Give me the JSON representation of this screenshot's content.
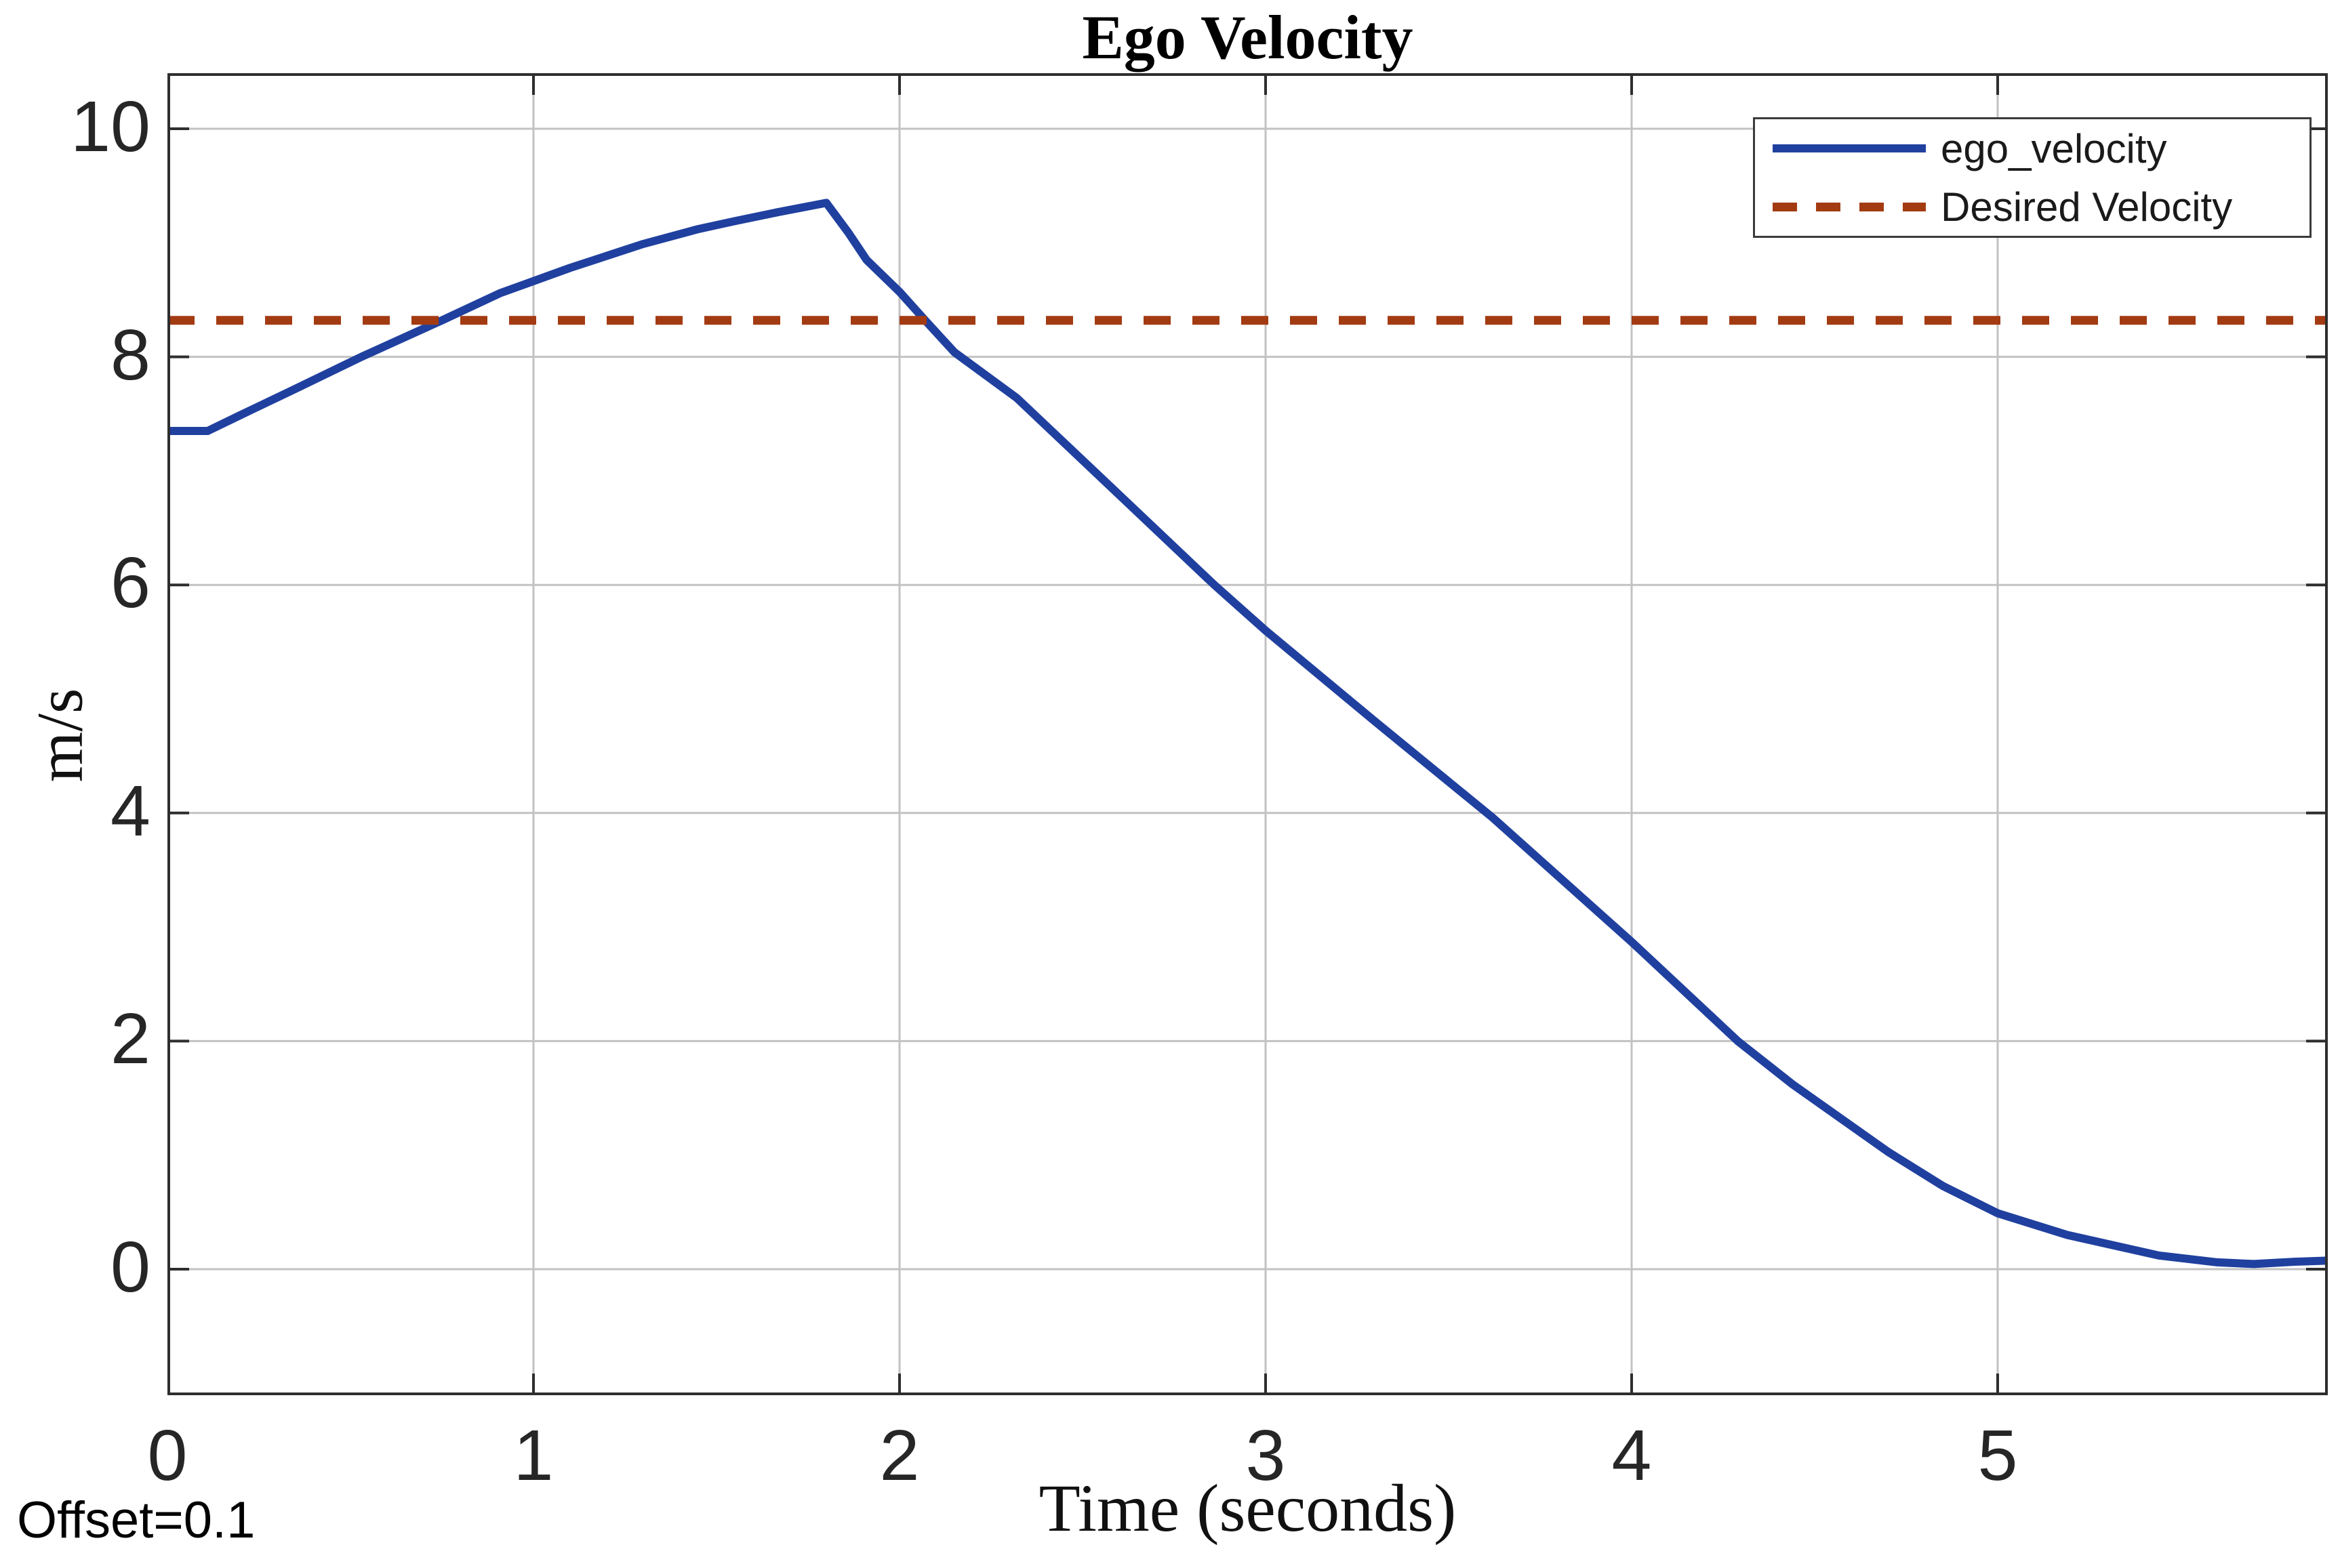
{
  "figure": {
    "title": "Ego Velocity",
    "xlabel": "Time (seconds)",
    "ylabel": "m/s",
    "offset_note": "Offset=0.1"
  },
  "legend": {
    "position": "top-right",
    "entries": [
      {
        "label": "ego_velocity",
        "style": "solid",
        "color": "#20409f"
      },
      {
        "label": "Desired Velocity",
        "style": "dashed",
        "color": "#a33b12"
      }
    ]
  },
  "colors": {
    "background": "#ffffff",
    "axis_border": "#2e2e2e",
    "grid_line": "#c2c2c2",
    "tick_label": "#262626",
    "ego_velocity_line": "#20409f",
    "desired_velocity_line": "#a33b12"
  },
  "chart_data": {
    "type": "line",
    "title": "Ego Velocity",
    "xlabel": "Time (seconds)",
    "ylabel": "m/s",
    "xlim": [
      0,
      5.9
    ],
    "ylim": [
      -1.1,
      10.5
    ],
    "x_ticks": [
      0,
      1,
      2,
      3,
      4,
      5
    ],
    "y_ticks": [
      0,
      2,
      4,
      6,
      8,
      10
    ],
    "grid": true,
    "legend_position": "top-right",
    "series": [
      {
        "name": "ego_velocity",
        "style": "solid",
        "color": "#20409f",
        "points": [
          [
            0.0,
            7.35
          ],
          [
            0.11,
            7.35
          ],
          [
            0.2,
            7.49
          ],
          [
            0.35,
            7.72
          ],
          [
            0.53,
            8.0
          ],
          [
            0.75,
            8.32
          ],
          [
            0.91,
            8.56
          ],
          [
            1.1,
            8.78
          ],
          [
            1.3,
            8.99
          ],
          [
            1.45,
            9.12
          ],
          [
            1.55,
            9.19
          ],
          [
            1.67,
            9.27
          ],
          [
            1.8,
            9.35
          ],
          [
            1.86,
            9.09
          ],
          [
            1.91,
            8.85
          ],
          [
            2.0,
            8.57
          ],
          [
            2.07,
            8.32
          ],
          [
            2.15,
            8.04
          ],
          [
            2.32,
            7.64
          ],
          [
            2.6,
            6.79
          ],
          [
            2.86,
            6.0
          ],
          [
            3.0,
            5.6
          ],
          [
            3.3,
            4.8
          ],
          [
            3.62,
            3.96
          ],
          [
            4.0,
            2.87
          ],
          [
            4.29,
            2.0
          ],
          [
            4.44,
            1.62
          ],
          [
            4.7,
            1.03
          ],
          [
            4.85,
            0.73
          ],
          [
            5.0,
            0.49
          ],
          [
            5.19,
            0.3
          ],
          [
            5.44,
            0.12
          ],
          [
            5.6,
            0.06
          ],
          [
            5.7,
            0.045
          ],
          [
            5.81,
            0.065
          ],
          [
            5.9,
            0.075
          ]
        ]
      },
      {
        "name": "Desired Velocity",
        "style": "dashed",
        "color": "#a33b12",
        "value": 8.32,
        "points": [
          [
            0.0,
            8.32
          ],
          [
            5.9,
            8.32
          ]
        ]
      }
    ]
  }
}
